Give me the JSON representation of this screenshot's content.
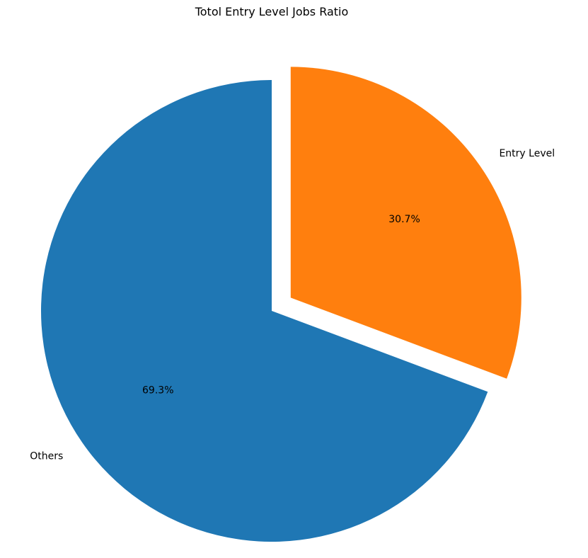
{
  "chart_data": {
    "type": "pie",
    "title": "Totol Entry Level Jobs Ratio",
    "start_angle_deg": 90,
    "direction": "clockwise",
    "slices": [
      {
        "label": "Entry Level",
        "value": 30.7,
        "pct_label": "30.7%",
        "color": "#ff7f0e",
        "explode": 0.1
      },
      {
        "label": "Others",
        "value": 69.3,
        "pct_label": "69.3%",
        "color": "#1f77b4",
        "explode": 0.0
      }
    ]
  }
}
